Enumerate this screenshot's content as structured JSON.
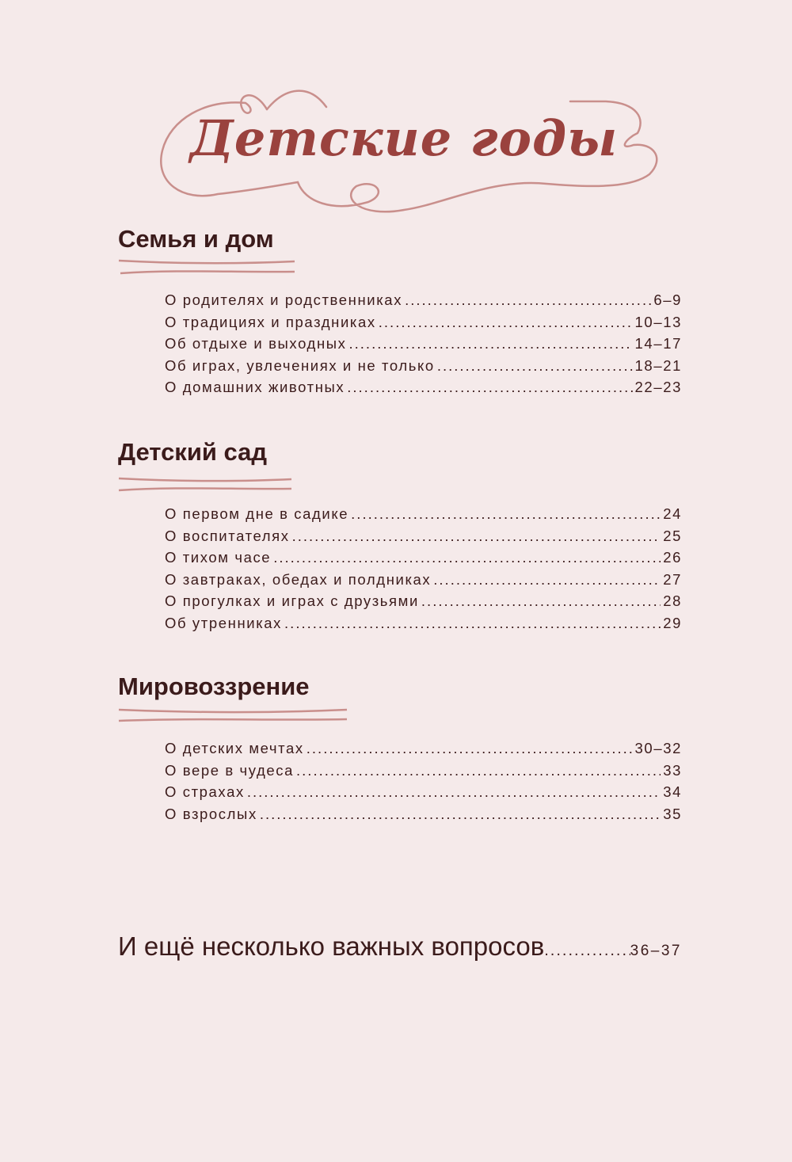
{
  "title": "Детские годы",
  "colors": {
    "background": "#f5eaea",
    "title": "#9a423e",
    "text": "#3b1b1b",
    "ornament": "#c98f8c"
  },
  "sections": [
    {
      "title": "Семья и дом",
      "items": [
        {
          "label": "О родителях и родственниках",
          "pages": "6–9"
        },
        {
          "label": "О традициях и праздниках",
          "pages": "10–13"
        },
        {
          "label": "Об отдыхе и выходных",
          "pages": "14–17"
        },
        {
          "label": "Об играх, увлечениях и не только",
          "pages": "18–21"
        },
        {
          "label": "О домашних животных",
          "pages": "22–23"
        }
      ]
    },
    {
      "title": "Детский сад",
      "items": [
        {
          "label": "О первом дне в садике",
          "pages": "24"
        },
        {
          "label": "О воспитателях",
          "pages": "25"
        },
        {
          "label": "О тихом часе",
          "pages": "26"
        },
        {
          "label": "О завтраках, обедах и полдниках",
          "pages": "27"
        },
        {
          "label": "О прогулках и играх с друзьями",
          "pages": "28"
        },
        {
          "label": "Об утренниках",
          "pages": "29"
        }
      ]
    },
    {
      "title": "Мировоззрение",
      "items": [
        {
          "label": "О детских мечтах",
          "pages": "30–32"
        },
        {
          "label": "О вере в чудеса",
          "pages": "33"
        },
        {
          "label": "О страхах",
          "pages": "34"
        },
        {
          "label": "О взрослых",
          "pages": "35"
        }
      ]
    }
  ],
  "extra": {
    "label": "И ещё несколько важных вопросов",
    "pages": "36–37"
  }
}
